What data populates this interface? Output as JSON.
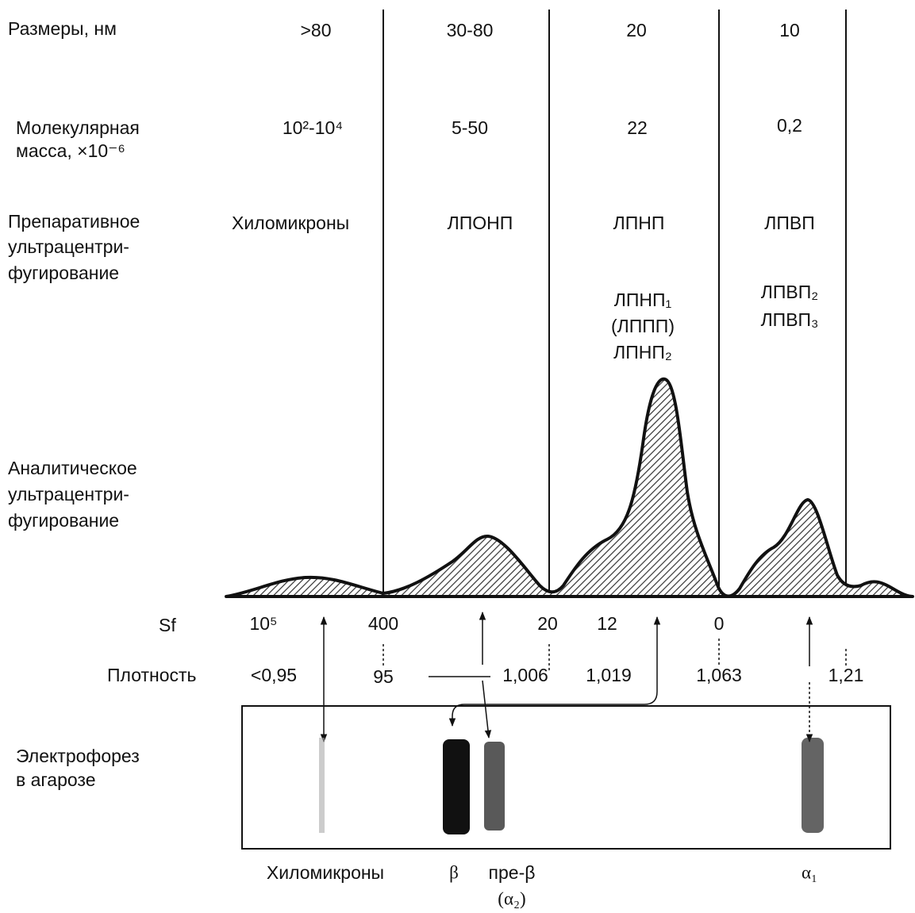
{
  "rows": {
    "size": "Размеры, нм",
    "mass": [
      "Молекулярная",
      "масса, ×10⁻⁶"
    ],
    "preparative": [
      "Препаративное",
      "ультрацентри-",
      "фугирование"
    ],
    "analytical": [
      "Аналитическое",
      "ультрацентри-",
      "фугирование"
    ],
    "sf": "Sf",
    "density": "Плотность",
    "electrophoresis": [
      "Электрофорез",
      "в агарозе"
    ]
  },
  "sizes": [
    ">80",
    "30-80",
    "20",
    "10"
  ],
  "masses": [
    "10²-10⁴",
    "5-50",
    "22",
    "0,2"
  ],
  "classes": [
    "Хиломикроны",
    "ЛПОНП",
    "ЛПНП",
    "ЛПВП"
  ],
  "ldl_subclasses": [
    "ЛПНП₁",
    "(ЛППП)",
    "ЛПНП₂"
  ],
  "hdl_subclasses": [
    "ЛПВП₂",
    "ЛПВП₃"
  ],
  "sf_values": [
    "10⁵",
    "400",
    "20",
    "12",
    "0"
  ],
  "densities": [
    "<0,95",
    "95",
    "1,006",
    "1,019",
    "1,063",
    "1,21"
  ],
  "bands": [
    "Хиломикроны",
    "β",
    "пре-β",
    "(α₂)",
    "α₁"
  ]
}
